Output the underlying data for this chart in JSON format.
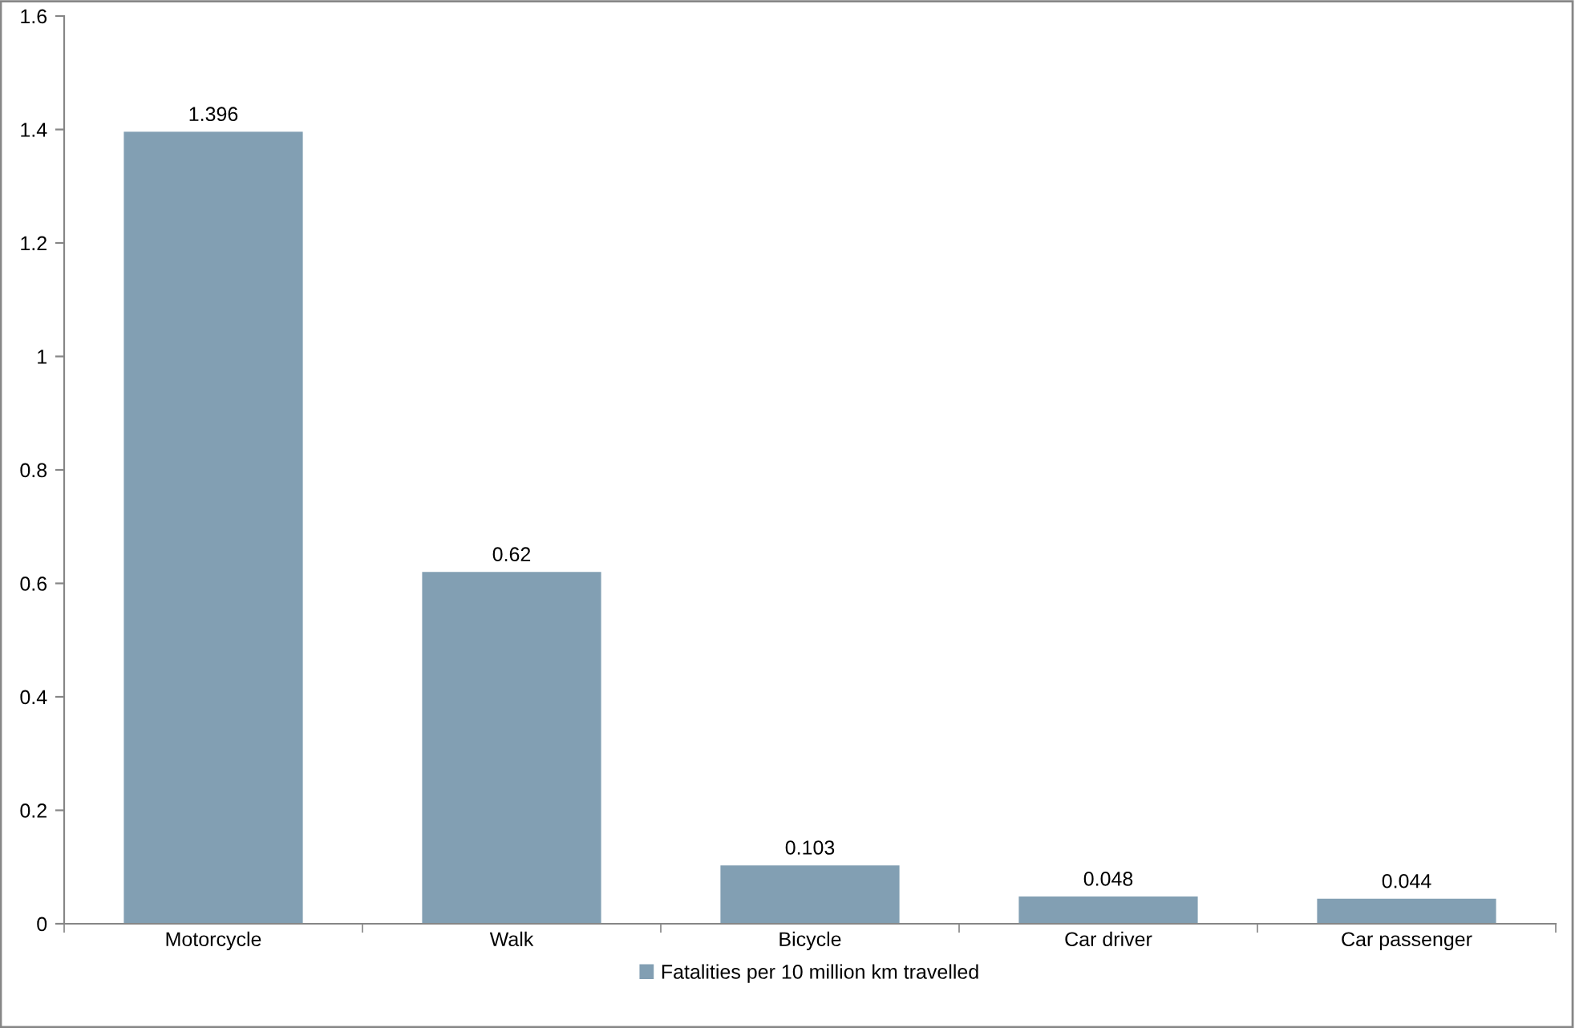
{
  "chart_data": {
    "type": "bar",
    "categories": [
      "Motorcycle",
      "Walk",
      "Bicycle",
      "Car driver",
      "Car passenger"
    ],
    "series": [
      {
        "name": "Fatalities per 10 million km travelled",
        "color": "#829fb3",
        "values": [
          1.396,
          0.62,
          0.103,
          0.048,
          0.044
        ]
      }
    ],
    "data_labels": true,
    "ylim": [
      0,
      1.6
    ],
    "yticks": [
      0,
      0.2,
      0.4,
      0.6,
      0.8,
      1,
      1.2,
      1.4,
      1.6
    ],
    "grid": false,
    "legend": "bottom"
  }
}
